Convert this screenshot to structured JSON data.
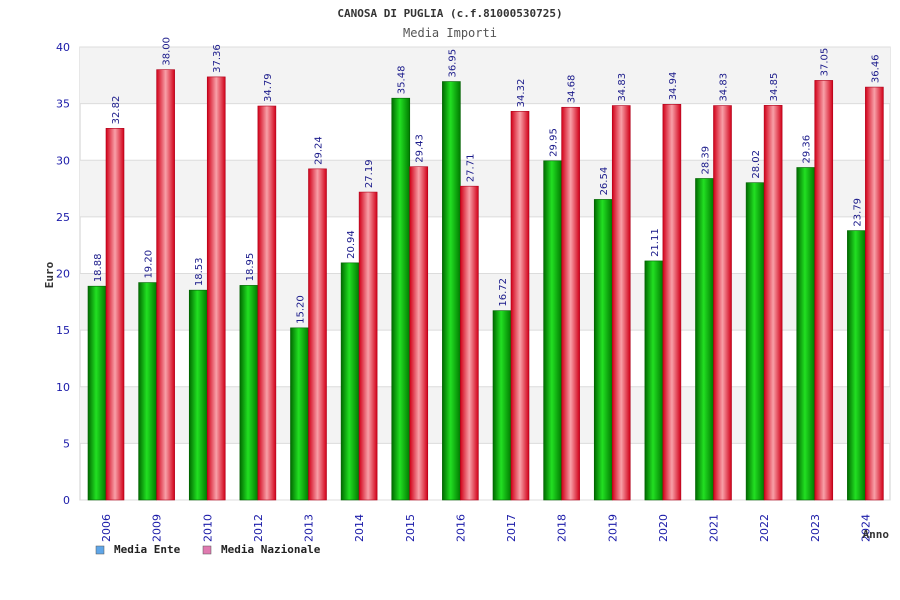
{
  "chart_data": {
    "type": "bar",
    "title": "CANOSA DI PUGLIA (c.f.81000530725)",
    "subtitle": "Media Importi",
    "xlabel": "Anno",
    "ylabel": "Euro",
    "ylim": [
      0,
      40
    ],
    "yticks": [
      "0",
      "5",
      "10",
      "15",
      "20",
      "25",
      "30",
      "35",
      "40"
    ],
    "grid": true,
    "legend_position": "bottom-left",
    "categories": [
      "2006",
      "2009",
      "2010",
      "2012",
      "2013",
      "2014",
      "2015",
      "2016",
      "2017",
      "2018",
      "2019",
      "2020",
      "2021",
      "2022",
      "2023",
      "2024"
    ],
    "series": [
      {
        "name": "Media Ente",
        "values": [
          18.88,
          19.2,
          18.53,
          18.95,
          15.2,
          20.94,
          35.48,
          36.95,
          16.72,
          29.95,
          26.54,
          21.11,
          28.39,
          28.02,
          29.36,
          23.79
        ],
        "labels": [
          "18.88",
          "19.20",
          "18.53",
          "18.95",
          "15.20",
          "20.94",
          "35.48",
          "36.95",
          "16.72",
          "29.95",
          "26.54",
          "21.11",
          "28.39",
          "28.02",
          "29.36",
          "23.79"
        ],
        "color": "#00b000",
        "legend_color": "#5fa6e8"
      },
      {
        "name": "Media Nazionale",
        "values": [
          32.82,
          38.0,
          37.36,
          34.79,
          29.24,
          27.19,
          29.43,
          27.71,
          34.32,
          34.68,
          34.83,
          34.94,
          34.83,
          34.85,
          37.05,
          36.46
        ],
        "labels": [
          "32.82",
          "38.00",
          "37.36",
          "34.79",
          "29.24",
          "27.19",
          "29.43",
          "27.71",
          "34.32",
          "34.68",
          "34.83",
          "34.94",
          "34.83",
          "34.85",
          "37.05",
          "36.46"
        ],
        "color": "#e8001c",
        "legend_color": "#e07ab0"
      }
    ]
  }
}
